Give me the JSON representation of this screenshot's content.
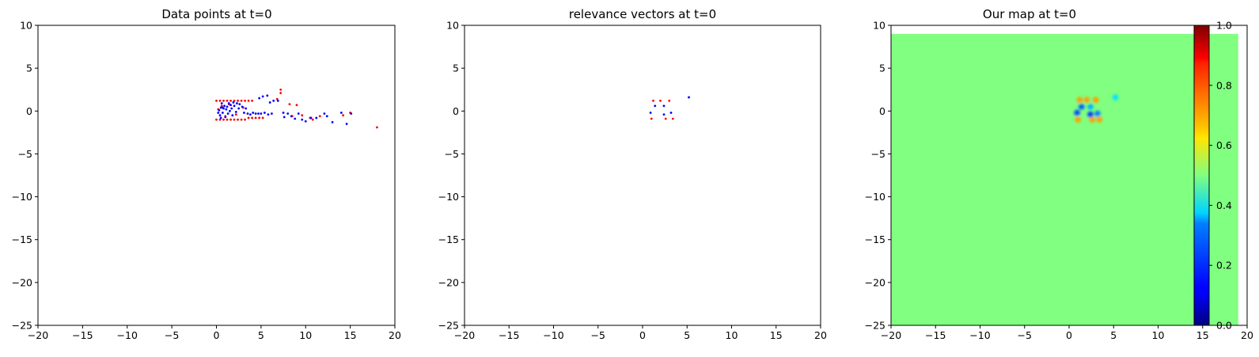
{
  "figure": {
    "colors": {
      "class_a": "#ff0000",
      "class_b": "#0000ff",
      "background_map": "#80ff80"
    }
  },
  "chart_data": [
    {
      "type": "scatter",
      "title": "Data points at t=0",
      "xlim": [
        -20,
        20
      ],
      "ylim": [
        -25,
        10
      ],
      "xticks": [
        -20,
        -15,
        -10,
        -5,
        0,
        5,
        10,
        15,
        20
      ],
      "yticks": [
        10,
        5,
        0,
        -5,
        -10,
        -15,
        -20,
        -25
      ],
      "series": [
        {
          "color": "#ff0000",
          "points": [
            [
              0.0,
              1.2
            ],
            [
              0.4,
              1.2
            ],
            [
              0.8,
              1.2
            ],
            [
              1.2,
              1.2
            ],
            [
              1.6,
              1.2
            ],
            [
              2.0,
              1.2
            ],
            [
              2.4,
              1.2
            ],
            [
              2.8,
              1.2
            ],
            [
              3.2,
              1.2
            ],
            [
              3.6,
              1.2
            ],
            [
              4.0,
              1.2
            ],
            [
              0.0,
              -1.0
            ],
            [
              0.4,
              -1.0
            ],
            [
              0.8,
              -1.0
            ],
            [
              1.2,
              -1.0
            ],
            [
              1.6,
              -1.0
            ],
            [
              2.0,
              -1.0
            ],
            [
              2.4,
              -1.0
            ],
            [
              2.8,
              -1.0
            ],
            [
              3.2,
              -1.0
            ],
            [
              3.6,
              -0.8
            ],
            [
              4.0,
              -0.8
            ],
            [
              4.4,
              -0.8
            ],
            [
              4.8,
              -0.8
            ],
            [
              5.2,
              -0.8
            ],
            [
              0.2,
              0.2
            ],
            [
              0.6,
              0.6
            ],
            [
              1.0,
              -0.6
            ],
            [
              1.4,
              0.8
            ],
            [
              2.2,
              -0.4
            ],
            [
              3.0,
              0.4
            ],
            [
              7.2,
              2.5
            ],
            [
              7.2,
              2.1
            ],
            [
              6.8,
              1.4
            ],
            [
              8.5,
              -0.6
            ],
            [
              8.2,
              0.8
            ],
            [
              9.0,
              0.7
            ],
            [
              10.5,
              -0.8
            ],
            [
              11.6,
              -0.6
            ],
            [
              14.2,
              -0.5
            ],
            [
              15.0,
              -0.2
            ],
            [
              18.0,
              -1.9
            ],
            [
              9.6,
              -0.5
            ],
            [
              10.8,
              -1.0
            ]
          ]
        },
        {
          "color": "#0000ff",
          "points": [
            [
              0.3,
              0.1
            ],
            [
              0.5,
              0.4
            ],
            [
              0.7,
              -0.2
            ],
            [
              0.9,
              0.6
            ],
            [
              1.1,
              0.2
            ],
            [
              1.3,
              -0.3
            ],
            [
              0.4,
              -0.5
            ],
            [
              0.6,
              0.9
            ],
            [
              0.8,
              0.3
            ],
            [
              1.0,
              -0.7
            ],
            [
              1.2,
              0.5
            ],
            [
              1.5,
              0.0
            ],
            [
              0.2,
              -0.2
            ],
            [
              0.5,
              -0.8
            ],
            [
              0.7,
              0.4
            ],
            [
              1.4,
              0.9
            ],
            [
              1.7,
              0.3
            ],
            [
              2.0,
              0.6
            ],
            [
              2.2,
              -0.1
            ],
            [
              2.5,
              0.3
            ],
            [
              1.8,
              -0.5
            ],
            [
              1.9,
              1.0
            ],
            [
              2.6,
              0.8
            ],
            [
              2.9,
              0.5
            ],
            [
              3.1,
              -0.2
            ],
            [
              3.3,
              0.3
            ],
            [
              3.5,
              -0.3
            ],
            [
              3.8,
              -0.4
            ],
            [
              4.1,
              -0.2
            ],
            [
              4.4,
              -0.3
            ],
            [
              4.7,
              -0.3
            ],
            [
              5.0,
              -0.3
            ],
            [
              5.4,
              -0.2
            ],
            [
              5.8,
              -0.4
            ],
            [
              6.2,
              -0.3
            ],
            [
              4.8,
              1.5
            ],
            [
              5.2,
              1.7
            ],
            [
              5.7,
              1.8
            ],
            [
              6.0,
              1.0
            ],
            [
              6.4,
              1.2
            ],
            [
              6.9,
              1.2
            ],
            [
              7.5,
              -0.2
            ],
            [
              7.6,
              -0.7
            ],
            [
              8.0,
              -0.3
            ],
            [
              8.4,
              -0.6
            ],
            [
              8.8,
              -0.9
            ],
            [
              9.2,
              -0.3
            ],
            [
              9.6,
              -1.0
            ],
            [
              10.0,
              -1.2
            ],
            [
              10.6,
              -0.8
            ],
            [
              11.2,
              -0.8
            ],
            [
              12.1,
              -0.3
            ],
            [
              12.4,
              -0.6
            ],
            [
              13.0,
              -1.3
            ],
            [
              14.0,
              -0.2
            ],
            [
              14.6,
              -1.5
            ],
            [
              15.1,
              -0.3
            ],
            [
              1.6,
              0.7
            ],
            [
              2.3,
              0.9
            ]
          ]
        }
      ]
    },
    {
      "type": "scatter",
      "title": "relevance vectors at t=0",
      "xlim": [
        -20,
        20
      ],
      "ylim": [
        -25,
        10
      ],
      "xticks": [
        -20,
        -15,
        -10,
        -5,
        0,
        5,
        10,
        15,
        20
      ],
      "yticks": [
        10,
        5,
        0,
        -5,
        -10,
        -15,
        -20,
        -25
      ],
      "series": [
        {
          "color": "#ff0000",
          "points": [
            [
              1.2,
              1.2
            ],
            [
              2.0,
              1.2
            ],
            [
              3.0,
              1.2
            ],
            [
              1.0,
              -0.9
            ],
            [
              2.6,
              -0.9
            ],
            [
              3.4,
              -0.9
            ]
          ]
        },
        {
          "color": "#0000ff",
          "points": [
            [
              1.4,
              0.6
            ],
            [
              2.4,
              0.6
            ],
            [
              0.9,
              -0.2
            ],
            [
              2.4,
              -0.4
            ],
            [
              3.2,
              -0.2
            ],
            [
              5.2,
              1.6
            ]
          ]
        }
      ]
    },
    {
      "type": "heatmap",
      "title": "Our map at t=0",
      "xlim": [
        -20,
        20
      ],
      "ylim": [
        -25,
        10
      ],
      "xticks": [
        -20,
        -15,
        -10,
        -5,
        0,
        5,
        10,
        15,
        20
      ],
      "yticks": [
        10,
        5,
        0,
        -5,
        -10,
        -15,
        -20,
        -25
      ],
      "extent": [
        -20,
        19,
        -25,
        9
      ],
      "background_value": 0.5,
      "colormap": "jet",
      "colorbar": {
        "min": 0.0,
        "max": 1.0,
        "ticks": [
          "0.0",
          "0.2",
          "0.4",
          "0.6",
          "0.8",
          "1.0"
        ]
      },
      "blobs": [
        {
          "x": 1.2,
          "y": 1.3,
          "value": 0.72
        },
        {
          "x": 2.0,
          "y": 1.3,
          "value": 0.72
        },
        {
          "x": 3.0,
          "y": 1.3,
          "value": 0.72
        },
        {
          "x": 1.0,
          "y": -1.0,
          "value": 0.72
        },
        {
          "x": 2.6,
          "y": -1.0,
          "value": 0.72
        },
        {
          "x": 3.4,
          "y": -1.0,
          "value": 0.72
        },
        {
          "x": 1.4,
          "y": 0.5,
          "value": 0.22
        },
        {
          "x": 2.4,
          "y": 0.5,
          "value": 0.3
        },
        {
          "x": 0.9,
          "y": -0.2,
          "value": 0.2
        },
        {
          "x": 2.4,
          "y": -0.4,
          "value": 0.18
        },
        {
          "x": 3.2,
          "y": -0.3,
          "value": 0.25
        },
        {
          "x": 5.2,
          "y": 1.6,
          "value": 0.35
        }
      ]
    }
  ]
}
